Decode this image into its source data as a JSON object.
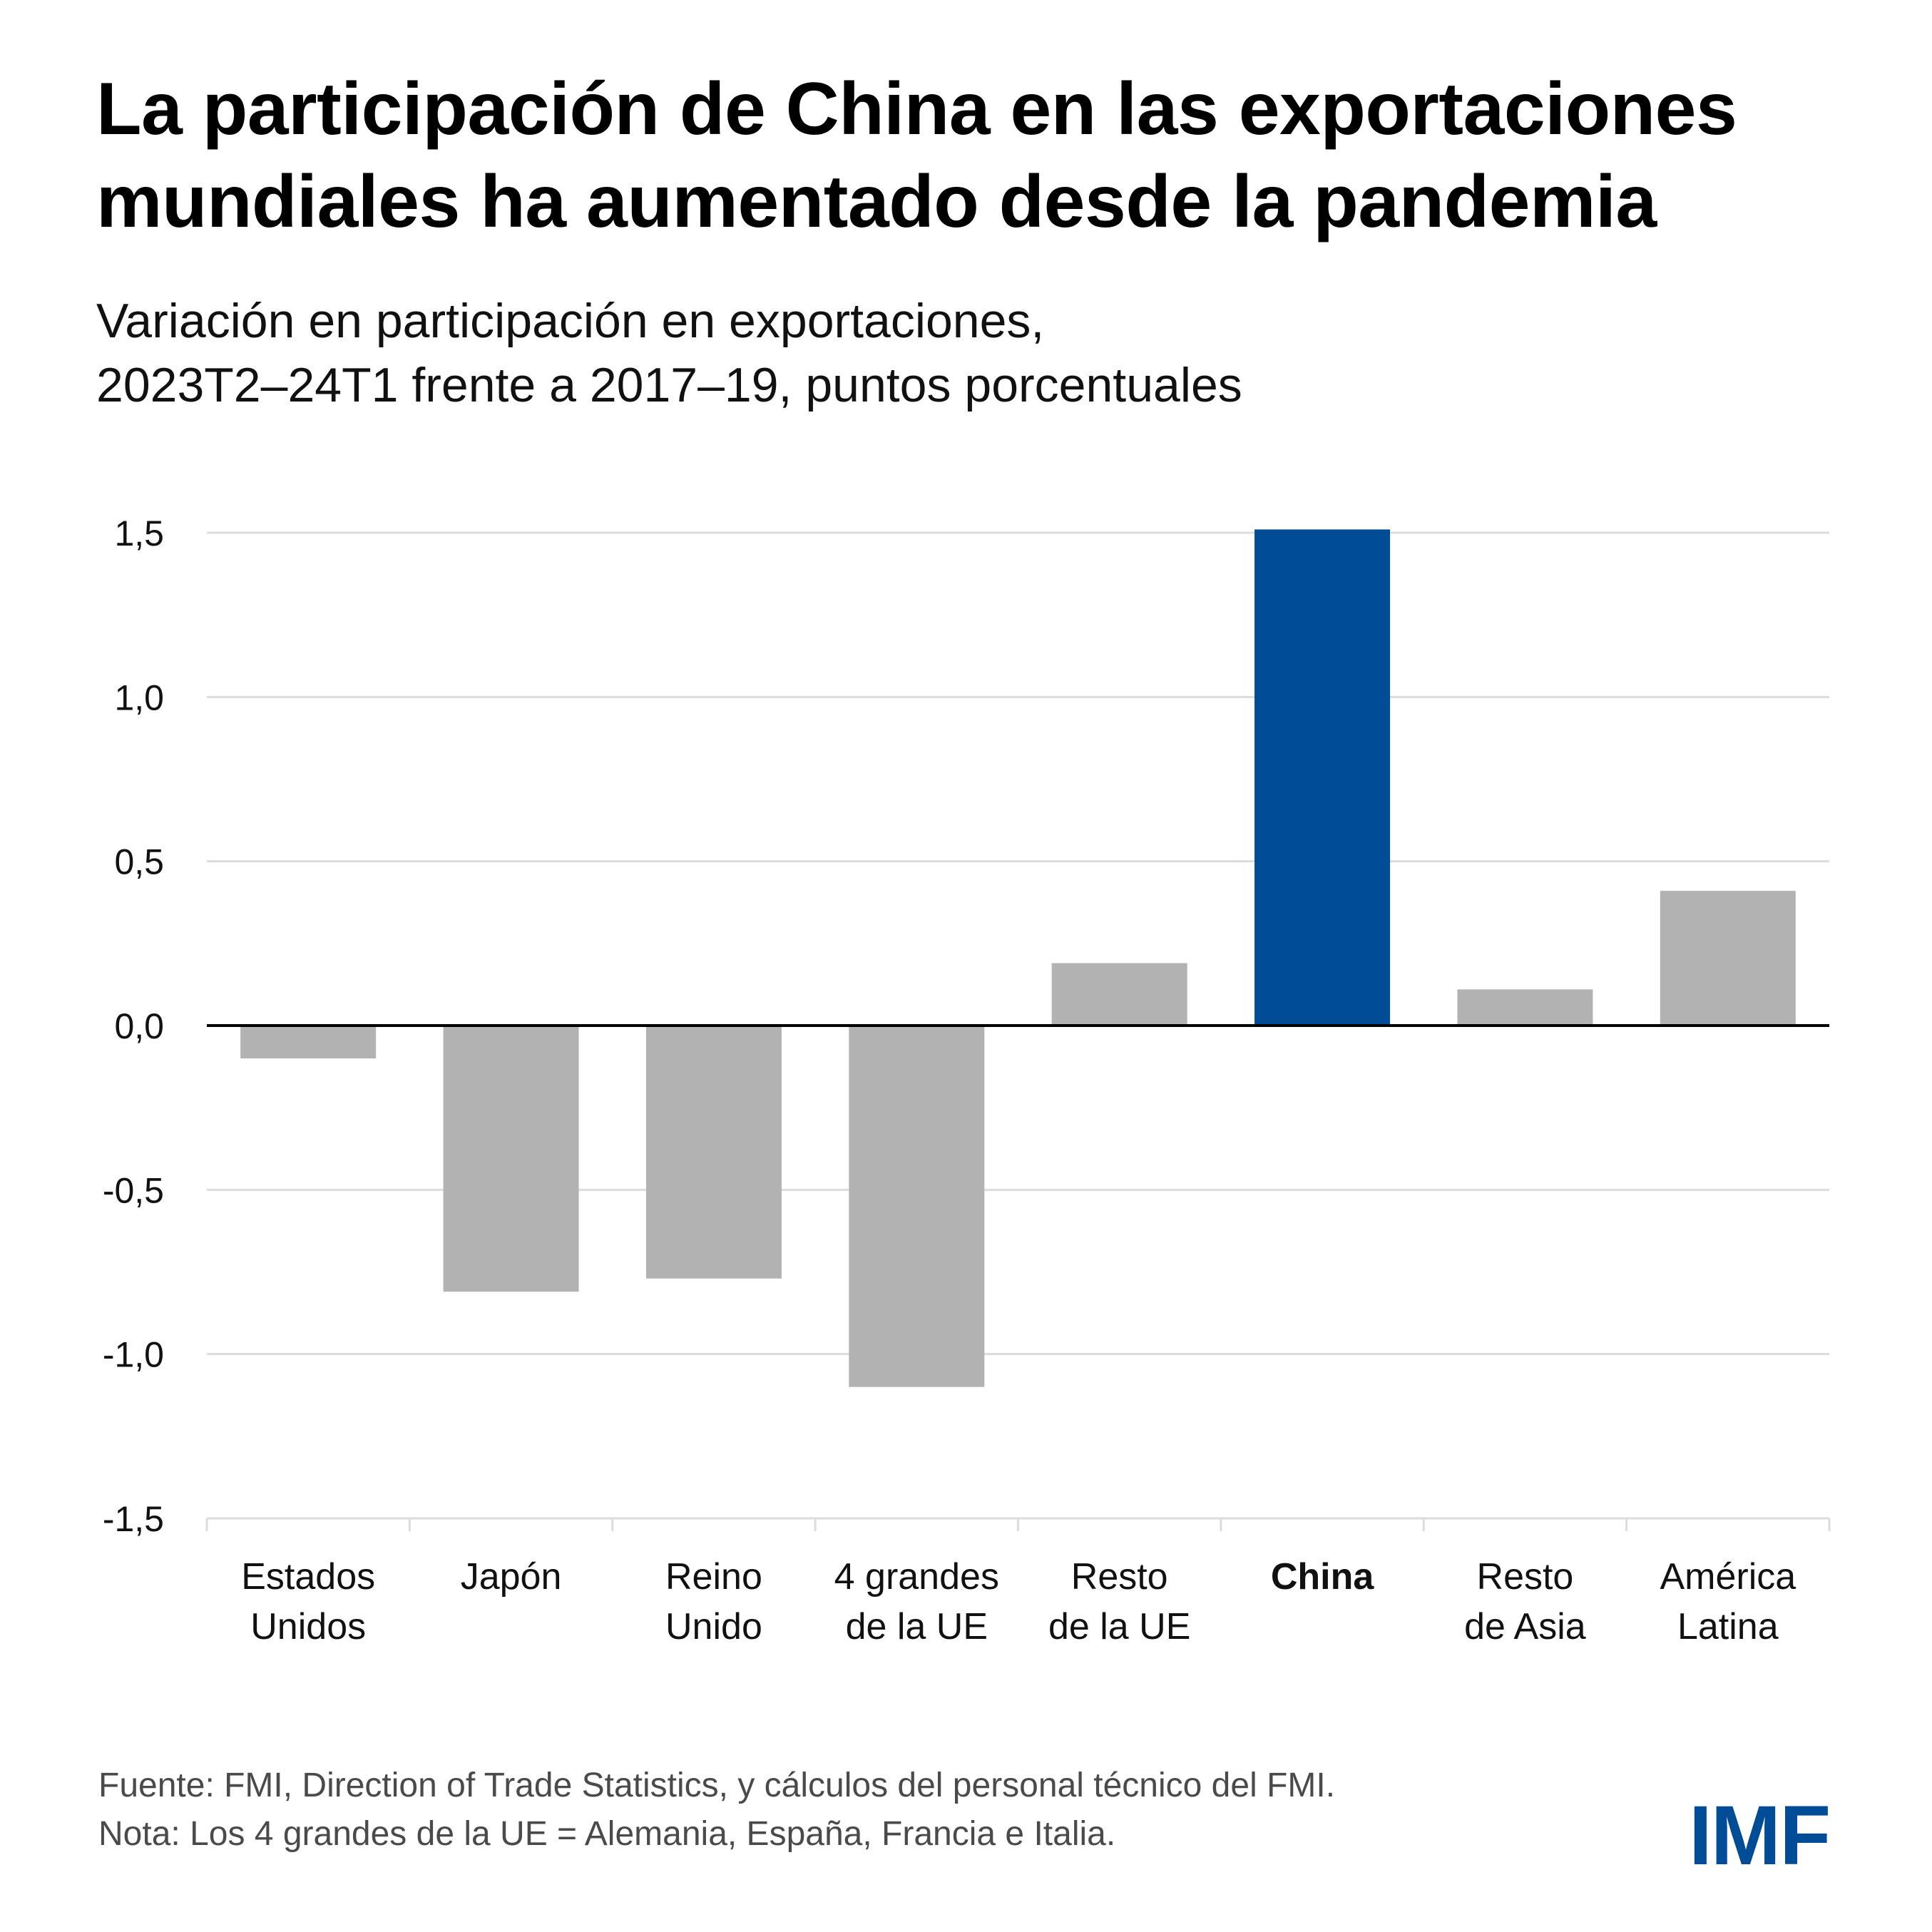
{
  "title": {
    "line1": "La participación de China en las exportaciones",
    "line2": "mundiales ha aumentado desde la pandemia"
  },
  "subtitle": {
    "line1": "Variación en participación en exportaciones,",
    "line2": "2023T2–24T1 frente a 2017–19, puntos porcentuales"
  },
  "footer": {
    "source": "Fuente: FMI, Direction of Trade Statistics, y cálculos del personal técnico del FMI.",
    "note": "Nota: Los 4 grandes de la UE = Alemania, España, Francia e Italia."
  },
  "logo": {
    "text": "IMF"
  },
  "colors": {
    "highlight": "#004c97",
    "default_bar": "#b1b2b1",
    "gridline": "#dcdcdc",
    "zero_line": "#000000"
  },
  "chart_data": {
    "type": "bar",
    "title": "La participación de China en las exportaciones mundiales ha aumentado desde la pandemia",
    "subtitle": "Variación en participación en exportaciones, 2023T2–24T1 frente a 2017–19, puntos porcentuales",
    "xlabel": "",
    "ylabel": "",
    "ylim": [
      -1.5,
      1.5
    ],
    "yticks": [
      1.5,
      1.0,
      0.5,
      0.0,
      -0.5,
      -1.0,
      -1.5
    ],
    "ytick_labels": [
      "1,5",
      "1,0",
      "0,5",
      "0,0",
      "-0,5",
      "-1,0",
      "-1,5"
    ],
    "grid": true,
    "legend": "none",
    "categories": [
      [
        "Estados",
        "Unidos"
      ],
      [
        "Japón"
      ],
      [
        "Reino",
        "Unido"
      ],
      [
        "4 grandes",
        "de la UE"
      ],
      [
        "Resto",
        "de la UE"
      ],
      [
        "China"
      ],
      [
        "Resto",
        "de Asia"
      ],
      [
        "América",
        "Latina"
      ]
    ],
    "values": [
      -0.1,
      -0.81,
      -0.77,
      -1.1,
      0.19,
      1.51,
      0.11,
      0.41
    ],
    "highlight": [
      false,
      false,
      false,
      false,
      false,
      true,
      false,
      false
    ]
  }
}
